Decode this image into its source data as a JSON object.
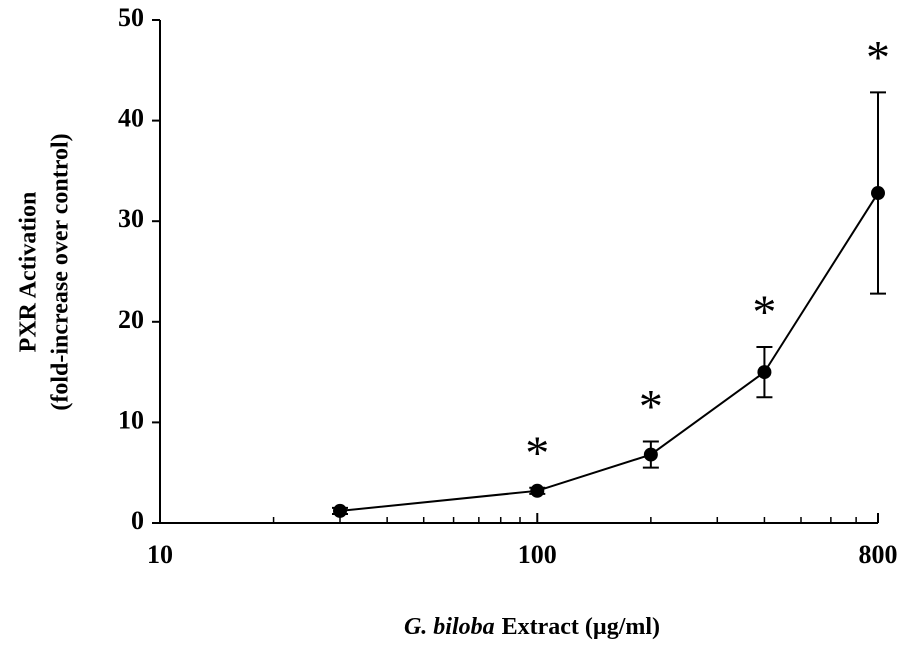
{
  "chart_data": {
    "type": "line",
    "xlabel": {
      "italic": "G. biloba",
      "text": "Extract (µg/ml)"
    },
    "ylabel": [
      "PXR Activation",
      "(fold-increase over control)"
    ],
    "x": [
      30,
      100,
      200,
      400,
      800
    ],
    "series": [
      {
        "color": "#000000",
        "values": [
          1.2,
          3.2,
          6.8,
          15,
          32.8
        ],
        "errors": [
          0.3,
          0.3,
          1.3,
          2.5,
          10
        ],
        "markers": [
          null,
          "*",
          "*",
          "*",
          "*"
        ]
      }
    ],
    "xscale": "log",
    "xlim": [
      10,
      800
    ],
    "xticks": [
      10,
      100,
      800
    ],
    "xminorticks": [
      20,
      30,
      40,
      50,
      60,
      70,
      80,
      90,
      200,
      300,
      400,
      500,
      600,
      700
    ],
    "ylim": [
      0,
      50
    ],
    "yticks": [
      0,
      10,
      20,
      30,
      40,
      50
    ]
  }
}
